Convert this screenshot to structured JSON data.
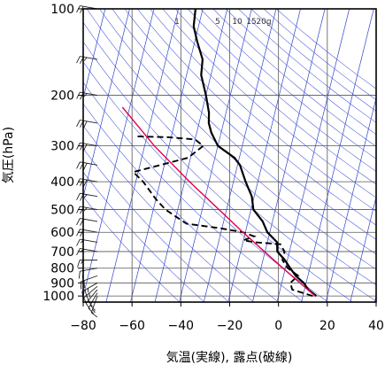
{
  "chart_data": {
    "type": "line",
    "subtype": "skew-t log-p aerological diagram",
    "xlabel": "気温(実線), 露点(破線)",
    "ylabel": "気圧(hPa)",
    "x_ticks": [
      -80,
      -60,
      -40,
      -20,
      0,
      20,
      40
    ],
    "x_tick_labels": [
      "−80",
      "−60",
      "−40",
      "−20",
      "0",
      "20",
      "40"
    ],
    "y_ticks": [
      100,
      200,
      300,
      400,
      500,
      600,
      700,
      800,
      900,
      1000
    ],
    "y_tick_labels": [
      "100",
      "200",
      "300",
      "400",
      "500",
      "600",
      "700",
      "800",
      "900",
      "1000"
    ],
    "xlim": [
      -80,
      40
    ],
    "ylim": [
      1050,
      100
    ],
    "y_scale": "log",
    "mixing_ratio_labels": [
      "1",
      "5",
      "10",
      "15",
      "20g"
    ],
    "grid": true,
    "colors": {
      "temperature": "#000000",
      "dewpoint": "#000000",
      "parcel": "#e0004a",
      "isotherm": "#3344cc",
      "adiabat": "#4455dd",
      "grid": "#555555",
      "wind": "#222222"
    },
    "series": [
      {
        "style": "solid",
        "points": [
          {
            "p": 1000,
            "t": 15.5
          },
          {
            "p": 950,
            "t": 11.5
          },
          {
            "p": 900,
            "t": 9
          },
          {
            "p": 850,
            "t": 5
          },
          {
            "p": 800,
            "t": 2
          },
          {
            "p": 750,
            "t": -1
          },
          {
            "p": 700,
            "t": -5
          },
          {
            "p": 650,
            "t": -6
          },
          {
            "p": 600,
            "t": -11
          },
          {
            "p": 550,
            "t": -14
          },
          {
            "p": 500,
            "t": -19
          },
          {
            "p": 450,
            "t": -21
          },
          {
            "p": 400,
            "t": -25
          },
          {
            "p": 350,
            "t": -29
          },
          {
            "p": 330,
            "t": -32
          },
          {
            "p": 300,
            "t": -40
          },
          {
            "p": 270,
            "t": -44
          },
          {
            "p": 250,
            "t": -46
          },
          {
            "p": 230,
            "t": -47
          },
          {
            "p": 200,
            "t": -50
          },
          {
            "p": 170,
            "t": -54
          },
          {
            "p": 150,
            "t": -55
          },
          {
            "p": 130,
            "t": -59
          },
          {
            "p": 115,
            "t": -62
          },
          {
            "p": 100,
            "t": -63
          }
        ]
      },
      {
        "style": "dashed",
        "points": [
          {
            "p": 1000,
            "t": 14
          },
          {
            "p": 950,
            "t": 5
          },
          {
            "p": 900,
            "t": 3.5
          },
          {
            "p": 850,
            "t": 6
          },
          {
            "p": 800,
            "t": 1
          },
          {
            "p": 750,
            "t": -2
          },
          {
            "p": 700,
            "t": -2
          },
          {
            "p": 660,
            "t": -4.5
          },
          {
            "p": 650,
            "t": -15
          },
          {
            "p": 640,
            "t": -20
          },
          {
            "p": 620,
            "t": -16
          },
          {
            "p": 600,
            "t": -21
          },
          {
            "p": 580,
            "t": -31
          },
          {
            "p": 560,
            "t": -45
          },
          {
            "p": 500,
            "t": -55
          },
          {
            "p": 460,
            "t": -60
          },
          {
            "p": 400,
            "t": -67
          },
          {
            "p": 370,
            "t": -72
          },
          {
            "p": 330,
            "t": -51
          },
          {
            "p": 300,
            "t": -46
          },
          {
            "p": 285,
            "t": -50
          },
          {
            "p": 280,
            "t": -61
          },
          {
            "p": 278,
            "t": -75
          }
        ]
      },
      {
        "style": "parcel",
        "points": [
          {
            "p": 1000,
            "t": 15
          },
          {
            "p": 800,
            "t": -1
          },
          {
            "p": 600,
            "t": -21
          },
          {
            "p": 400,
            "t": -48
          },
          {
            "p": 300,
            "t": -66
          },
          {
            "p": 220,
            "t": -83
          }
        ]
      }
    ],
    "wind_barbs": [
      {
        "p": 1000,
        "dir": 200,
        "kt": 15
      },
      {
        "p": 975,
        "dir": 210,
        "kt": 20
      },
      {
        "p": 950,
        "dir": 220,
        "kt": 20
      },
      {
        "p": 925,
        "dir": 230,
        "kt": 25
      },
      {
        "p": 900,
        "dir": 240,
        "kt": 25
      },
      {
        "p": 850,
        "dir": 250,
        "kt": 20
      },
      {
        "p": 800,
        "dir": 260,
        "kt": 20
      },
      {
        "p": 750,
        "dir": 270,
        "kt": 15
      },
      {
        "p": 700,
        "dir": 280,
        "kt": 15
      },
      {
        "p": 650,
        "dir": 280,
        "kt": 15
      },
      {
        "p": 600,
        "dir": 280,
        "kt": 20
      },
      {
        "p": 550,
        "dir": 280,
        "kt": 20
      },
      {
        "p": 500,
        "dir": 280,
        "kt": 25
      },
      {
        "p": 450,
        "dir": 280,
        "kt": 25
      },
      {
        "p": 400,
        "dir": 280,
        "kt": 30
      },
      {
        "p": 350,
        "dir": 280,
        "kt": 30
      },
      {
        "p": 300,
        "dir": 280,
        "kt": 30
      },
      {
        "p": 250,
        "dir": 280,
        "kt": 30
      },
      {
        "p": 200,
        "dir": 280,
        "kt": 25
      },
      {
        "p": 150,
        "dir": 280,
        "kt": 25
      },
      {
        "p": 100,
        "dir": 280,
        "kt": 20
      }
    ]
  }
}
